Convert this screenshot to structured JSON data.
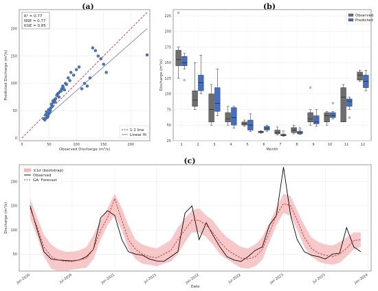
{
  "chart_data": [
    {
      "id": "a",
      "panel_label": "(a)",
      "type": "scatter",
      "xlabel": "Observed Discharge (m³/s)",
      "ylabel": "Predicted Discharge (m³/s)",
      "xlim": [
        -5,
        235
      ],
      "ylim": [
        -5,
        235
      ],
      "xticks": [
        0,
        50,
        100,
        150,
        200
      ],
      "yticks": [
        0,
        50,
        100,
        150,
        200
      ],
      "grid": true,
      "stats": [
        "R² = 0.77",
        "NSE = 0.77",
        "KGE = 0.85"
      ],
      "legend": [
        {
          "label": "1:1 line",
          "color": "#d62728",
          "dash": true
        },
        {
          "label": "Linear fit",
          "color": "#7b7b9b",
          "dash": false
        }
      ],
      "legend_position": "lower-right",
      "points": [
        [
          40,
          35
        ],
        [
          42,
          33
        ],
        [
          44,
          36
        ],
        [
          45,
          48
        ],
        [
          47,
          38
        ],
        [
          48,
          40
        ],
        [
          50,
          45
        ],
        [
          52,
          50
        ],
        [
          53,
          55
        ],
        [
          55,
          60
        ],
        [
          56,
          58
        ],
        [
          58,
          65
        ],
        [
          60,
          70
        ],
        [
          62,
          72
        ],
        [
          65,
          80
        ],
        [
          68,
          75
        ],
        [
          70,
          85
        ],
        [
          73,
          90
        ],
        [
          75,
          95
        ],
        [
          78,
          88
        ],
        [
          80,
          100
        ],
        [
          85,
          110
        ],
        [
          90,
          120
        ],
        [
          95,
          115
        ],
        [
          100,
          125
        ],
        [
          105,
          130
        ],
        [
          110,
          90
        ],
        [
          115,
          100
        ],
        [
          120,
          95
        ],
        [
          125,
          110
        ],
        [
          130,
          165
        ],
        [
          135,
          160
        ],
        [
          140,
          150
        ],
        [
          145,
          145
        ],
        [
          150,
          135
        ],
        [
          155,
          120
        ],
        [
          43,
          42
        ],
        [
          46,
          44
        ],
        [
          49,
          52
        ],
        [
          51,
          48
        ],
        [
          54,
          62
        ],
        [
          57,
          68
        ],
        [
          61,
          66
        ],
        [
          64,
          78
        ],
        [
          67,
          82
        ],
        [
          72,
          86
        ],
        [
          76,
          92
        ],
        [
          82,
          98
        ],
        [
          88,
          105
        ],
        [
          230,
          152
        ]
      ],
      "one_to_one": [
        [
          0,
          0
        ],
        [
          230,
          230
        ]
      ],
      "linear_fit": [
        [
          40,
          34
        ],
        [
          230,
          200
        ]
      ]
    },
    {
      "id": "b",
      "panel_label": "(b)",
      "type": "boxplot",
      "xlabel": "Month",
      "ylabel": "Discharge (m³/s)",
      "ylim": [
        25,
        235
      ],
      "yticks": [
        25,
        50,
        75,
        100,
        125,
        150,
        175,
        200,
        225
      ],
      "categories": [
        "1",
        "2",
        "3",
        "4",
        "5",
        "6",
        "7",
        "8",
        "9",
        "10",
        "11",
        "12"
      ],
      "grid": true,
      "legend_position": "top-right",
      "series": [
        {
          "name": "Observed",
          "color": "#6e6e6e",
          "boxes": [
            {
              "whislo": 125,
              "q1": 145,
              "med": 155,
              "q3": 170,
              "whishi": 175,
              "fliers": [
                230
              ]
            },
            {
              "whislo": 75,
              "q1": 80,
              "med": 90,
              "q3": 105,
              "whishi": 150,
              "fliers": []
            },
            {
              "whislo": 50,
              "q1": 55,
              "med": 75,
              "q3": 100,
              "whishi": 115,
              "fliers": []
            },
            {
              "whislo": 50,
              "q1": 55,
              "med": 60,
              "q3": 70,
              "whishi": 80,
              "fliers": []
            },
            {
              "whislo": 48,
              "q1": 50,
              "med": 52,
              "q3": 55,
              "whishi": 58,
              "fliers": []
            },
            {
              "whislo": 37,
              "q1": 38,
              "med": 39,
              "q3": 40,
              "whishi": 41,
              "fliers": []
            },
            {
              "whislo": 34,
              "q1": 36,
              "med": 38,
              "q3": 42,
              "whishi": 47,
              "fliers": []
            },
            {
              "whislo": 36,
              "q1": 38,
              "med": 42,
              "q3": 46,
              "whishi": 50,
              "fliers": []
            },
            {
              "whislo": 50,
              "q1": 55,
              "med": 60,
              "q3": 70,
              "whishi": 75,
              "fliers": [
                110
              ]
            },
            {
              "whislo": 50,
              "q1": 55,
              "med": 65,
              "q3": 70,
              "whishi": 72,
              "fliers": []
            },
            {
              "whislo": 55,
              "q1": 55,
              "med": 95,
              "q3": 110,
              "whishi": 115,
              "fliers": []
            },
            {
              "whislo": 120,
              "q1": 122,
              "med": 130,
              "q3": 135,
              "whishi": 138,
              "fliers": []
            }
          ]
        },
        {
          "name": "Predicted",
          "color": "#3f6fc6",
          "boxes": [
            {
              "whislo": 140,
              "q1": 145,
              "med": 150,
              "q3": 160,
              "whishi": 165,
              "fliers": [
                122
              ]
            },
            {
              "whislo": 100,
              "q1": 105,
              "med": 118,
              "q3": 130,
              "whishi": 162,
              "fliers": []
            },
            {
              "whislo": 65,
              "q1": 72,
              "med": 85,
              "q3": 110,
              "whishi": 140,
              "fliers": []
            },
            {
              "whislo": 45,
              "q1": 50,
              "med": 62,
              "q3": 78,
              "whishi": 80,
              "fliers": []
            },
            {
              "whislo": 40,
              "q1": 42,
              "med": 50,
              "q3": 58,
              "whishi": 68,
              "fliers": []
            },
            {
              "whislo": 40,
              "q1": 42,
              "med": 45,
              "q3": 48,
              "whishi": 50,
              "fliers": []
            },
            {
              "whislo": 32,
              "q1": 33,
              "med": 34,
              "q3": 35,
              "whishi": 36,
              "fliers": [
                40
              ]
            },
            {
              "whislo": 35,
              "q1": 36,
              "med": 38,
              "q3": 40,
              "whishi": 42,
              "fliers": [
                45
              ]
            },
            {
              "whislo": 48,
              "q1": 52,
              "med": 55,
              "q3": 65,
              "whishi": 75,
              "fliers": []
            },
            {
              "whislo": 60,
              "q1": 62,
              "med": 65,
              "q3": 70,
              "whishi": 72,
              "fliers": [
                85
              ]
            },
            {
              "whislo": 75,
              "q1": 80,
              "med": 88,
              "q3": 92,
              "whishi": 95,
              "fliers": [
                62
              ]
            },
            {
              "whislo": 105,
              "q1": 110,
              "med": 120,
              "q3": 130,
              "whishi": 138,
              "fliers": []
            }
          ]
        }
      ]
    },
    {
      "id": "c",
      "panel_label": "(c)",
      "type": "line",
      "xlabel": "Date",
      "ylabel": "Discharge (m³/s)",
      "ylim": [
        15,
        235
      ],
      "yticks": [
        50,
        100,
        150,
        200
      ],
      "xrange": [
        "2019-11-15",
        "2024-01-15"
      ],
      "xticks": [
        "Jan-2020",
        "Jul-2020",
        "Jan-2021",
        "Jul-2021",
        "Jan-2022",
        "Jul-2022",
        "Jan-2023",
        "Jul-2023",
        "Jan-2024"
      ],
      "grid": true,
      "legend_position": "top-left",
      "x": [
        "2020-01",
        "2020-02",
        "2020-03",
        "2020-04",
        "2020-05",
        "2020-06",
        "2020-07",
        "2020-08",
        "2020-09",
        "2020-10",
        "2020-11",
        "2020-12",
        "2021-01",
        "2021-02",
        "2021-03",
        "2021-04",
        "2021-05",
        "2021-06",
        "2021-07",
        "2021-08",
        "2021-09",
        "2021-10",
        "2021-11",
        "2021-12",
        "2022-01",
        "2022-02",
        "2022-03",
        "2022-04",
        "2022-05",
        "2022-06",
        "2022-07",
        "2022-08",
        "2022-09",
        "2022-10",
        "2022-11",
        "2022-12",
        "2023-01",
        "2023-02",
        "2023-03",
        "2023-04",
        "2023-05",
        "2023-06",
        "2023-07",
        "2023-08",
        "2023-09",
        "2023-10",
        "2023-11",
        "2023-12"
      ],
      "series": [
        {
          "name": "±1σ (bootstrap)",
          "kind": "band",
          "color": "#f4b6b6",
          "lower": [
            125,
            85,
            45,
            20,
            15,
            15,
            18,
            20,
            22,
            40,
            80,
            110,
            130,
            100,
            60,
            40,
            30,
            28,
            25,
            30,
            35,
            50,
            75,
            95,
            95,
            85,
            70,
            50,
            40,
            30,
            22,
            20,
            25,
            38,
            75,
            110,
            135,
            130,
            100,
            65,
            45,
            35,
            30,
            28,
            32,
            45,
            60,
            65
          ],
          "upper": [
            165,
            125,
            90,
            70,
            60,
            55,
            55,
            58,
            65,
            90,
            120,
            145,
            175,
            145,
            110,
            80,
            70,
            65,
            62,
            70,
            80,
            105,
            125,
            140,
            145,
            130,
            120,
            100,
            85,
            75,
            65,
            62,
            70,
            85,
            115,
            145,
            175,
            170,
            140,
            110,
            85,
            75,
            70,
            68,
            75,
            85,
            95,
            95
          ]
        },
        {
          "name": "Observed",
          "kind": "line",
          "color": "#000000",
          "dash": false,
          "values": [
            150,
            100,
            55,
            40,
            38,
            37,
            36,
            38,
            45,
            60,
            125,
            140,
            130,
            80,
            55,
            50,
            48,
            40,
            36,
            35,
            45,
            55,
            135,
            150,
            80,
            115,
            90,
            65,
            45,
            38,
            35,
            45,
            58,
            65,
            110,
            130,
            230,
            130,
            80,
            55,
            48,
            45,
            40,
            50,
            52,
            105,
            65,
            55
          ]
        },
        {
          "name": "GA: Forecast",
          "kind": "line",
          "color": "#d62728",
          "dash": true,
          "values": [
            145,
            105,
            65,
            45,
            38,
            35,
            35,
            38,
            42,
            60,
            100,
            125,
            165,
            120,
            80,
            60,
            50,
            45,
            42,
            50,
            58,
            80,
            100,
            120,
            120,
            110,
            95,
            75,
            60,
            50,
            42,
            40,
            45,
            60,
            95,
            130,
            155,
            150,
            120,
            85,
            62,
            52,
            48,
            45,
            50,
            62,
            78,
            80
          ]
        }
      ]
    }
  ]
}
